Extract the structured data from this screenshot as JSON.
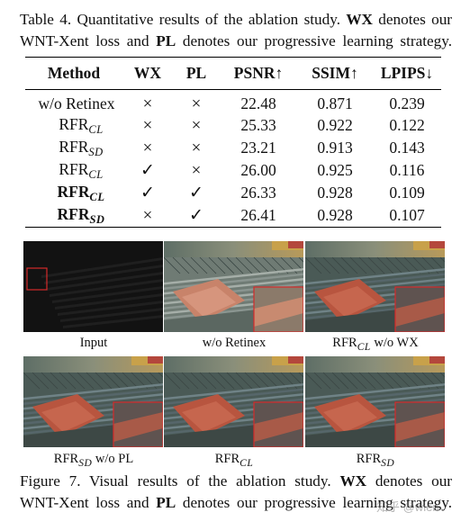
{
  "table_caption": {
    "line1_prefix": "Table 4. Quantitative results of the ablation study.",
    "line1_bold": "WX",
    "line1_suffix": "denotes our",
    "line2_prefix": "WNT-Xent loss and",
    "line2_bold": "PL",
    "line2_suffix": "denotes our progressive learning strategy."
  },
  "table": {
    "headers": [
      "Method",
      "WX",
      "PL",
      "PSNR↑",
      "SSIM↑",
      "LPIPS↓"
    ],
    "rows": [
      {
        "method": "w/o Retinex",
        "sub": "",
        "bold": false,
        "wx": "×",
        "pl": "×",
        "psnr": "22.48",
        "ssim": "0.871",
        "lpips": "0.239"
      },
      {
        "method": "RFR",
        "sub": "CL",
        "bold": false,
        "wx": "×",
        "pl": "×",
        "psnr": "25.33",
        "ssim": "0.922",
        "lpips": "0.122"
      },
      {
        "method": "RFR",
        "sub": "SD",
        "bold": false,
        "wx": "×",
        "pl": "×",
        "psnr": "23.21",
        "ssim": "0.913",
        "lpips": "0.143"
      },
      {
        "method": "RFR",
        "sub": "CL",
        "bold": false,
        "wx": "✓",
        "pl": "×",
        "psnr": "26.00",
        "ssim": "0.925",
        "lpips": "0.116"
      },
      {
        "method": "RFR",
        "sub": "CL",
        "bold": true,
        "wx": "✓",
        "pl": "✓",
        "psnr": "26.33",
        "ssim": "0.928",
        "lpips": "0.109"
      },
      {
        "method": "RFR",
        "sub": "SD",
        "bold": true,
        "wx": "×",
        "pl": "✓",
        "psnr": "26.41",
        "ssim": "0.928",
        "lpips": "0.107"
      }
    ]
  },
  "figure": {
    "panels": [
      {
        "name": "Input",
        "base": "",
        "sub": "",
        "suffix": ""
      },
      {
        "name": "w/o Retinex",
        "base": "",
        "sub": "",
        "suffix": ""
      },
      {
        "name": "",
        "base": "RFR",
        "sub": "CL",
        "suffix": " w/o WX"
      },
      {
        "name": "",
        "base": "RFR",
        "sub": "SD",
        "suffix": " w/o PL"
      },
      {
        "name": "",
        "base": "RFR",
        "sub": "CL",
        "suffix": ""
      },
      {
        "name": "",
        "base": "RFR",
        "sub": "SD",
        "suffix": ""
      }
    ],
    "inset_color": "#d42a2a"
  },
  "figure_caption": {
    "line1_prefix": "Figure 7.  Visual results of the ablation study.",
    "line1_bold": "WX",
    "line1_suffix": "denotes our",
    "line2_prefix": "WNT-Xent loss and",
    "line2_bold": "PL",
    "line2_suffix": "denotes our progressive learning strategy."
  },
  "watermark": "知乎 @wien"
}
